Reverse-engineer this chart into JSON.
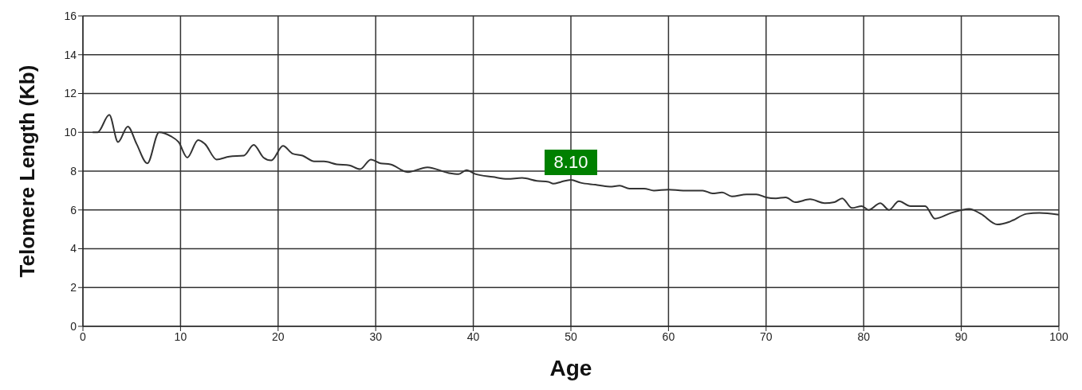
{
  "chart_data": {
    "type": "line",
    "xlabel": "Age",
    "ylabel": "Telomere Length (Kb)",
    "xlim": [
      0,
      100
    ],
    "xticks": [
      0,
      10,
      20,
      30,
      40,
      50,
      60,
      70,
      80,
      90,
      100
    ],
    "ylim": [
      0,
      16
    ],
    "yticks": [
      0,
      2,
      4,
      6,
      8,
      10,
      12,
      14,
      16
    ],
    "grid": true,
    "marker": "none",
    "line_style": "solid",
    "series": [
      {
        "color": "#333333",
        "x": [
          1,
          1.5,
          2.7,
          3.6,
          4.6,
          5.5,
          6.6,
          7.8,
          9,
          9.8,
          10.7,
          11.8,
          12.5,
          13.7,
          15,
          16.5,
          17.5,
          18.5,
          19.3,
          20.5,
          21.5,
          22.5,
          23.7,
          24.7,
          26,
          27.3,
          28.4,
          29.5,
          30.5,
          31.5,
          33.3,
          35.3,
          37.5,
          38.5,
          39.3,
          40.2,
          42,
          43.5,
          45,
          46.5,
          47.7,
          48.2,
          49,
          50,
          51,
          52.5,
          54,
          55,
          56,
          57.5,
          58.5,
          60,
          61.5,
          63.5,
          64.5,
          65.5,
          66.5,
          68,
          69,
          70,
          71,
          72,
          73,
          74.5,
          76,
          77,
          77.8,
          78.8,
          79.8,
          80.5,
          81.7,
          82.6,
          83.6,
          84.8,
          86.3,
          87.3,
          89,
          90.8,
          92,
          93.7,
          95,
          96.7,
          98,
          100
        ],
        "values": [
          10,
          10,
          10.9,
          9.5,
          10.3,
          9.4,
          8.4,
          10,
          9.8,
          9.5,
          8.7,
          9.6,
          9.4,
          8.6,
          8.75,
          8.8,
          9.35,
          8.7,
          8.55,
          9.3,
          8.9,
          8.8,
          8.5,
          8.5,
          8.35,
          8.3,
          8.1,
          8.6,
          8.4,
          8.35,
          7.95,
          8.2,
          7.9,
          7.85,
          8.05,
          7.85,
          7.7,
          7.6,
          7.65,
          7.5,
          7.45,
          7.35,
          7.45,
          7.55,
          7.4,
          7.3,
          7.2,
          7.25,
          7.1,
          7.1,
          7,
          7.05,
          7,
          7,
          6.85,
          6.9,
          6.7,
          6.8,
          6.8,
          6.65,
          6.6,
          6.65,
          6.4,
          6.55,
          6.35,
          6.4,
          6.6,
          6.1,
          6.2,
          6,
          6.35,
          6,
          6.45,
          6.2,
          6.2,
          5.55,
          5.85,
          6.05,
          5.8,
          5.25,
          5.4,
          5.8,
          5.85,
          5.75
        ]
      }
    ],
    "annotations": [
      "8.10"
    ]
  }
}
